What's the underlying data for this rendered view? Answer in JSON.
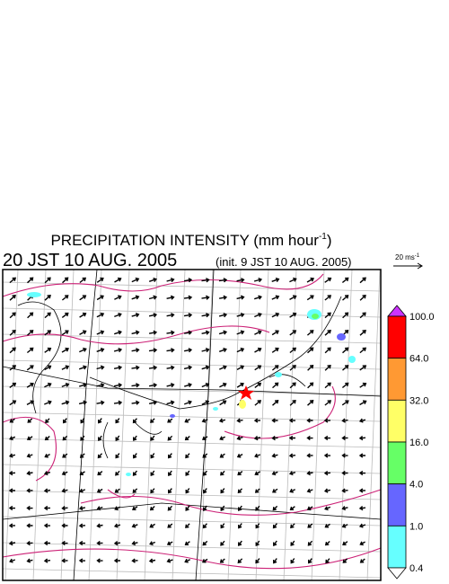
{
  "header": {
    "title": "PRECIPITATION INTENSITY (mm hour",
    "title_exponent": "-1",
    "title_close": ")",
    "valid_time": "20 JST 10 AUG. 2005",
    "init_time": "(init. 9 JST 10 AUG. 2005)"
  },
  "reference_vector": {
    "label": "20 ms",
    "exponent": "-1"
  },
  "colorbar": {
    "over_color": "#cc33ff",
    "under_color": "#ffffff",
    "levels": [
      {
        "label": "100.0",
        "color": "#ff0000"
      },
      {
        "label": "64.0",
        "color": "#ff9933"
      },
      {
        "label": "32.0",
        "color": "#ffff66"
      },
      {
        "label": "16.0",
        "color": "#66ff66"
      },
      {
        "label": "4.0",
        "color": "#6666ff"
      },
      {
        "label": "1.0",
        "color": "#66ffff"
      },
      {
        "label": "0.4"
      }
    ]
  }
}
